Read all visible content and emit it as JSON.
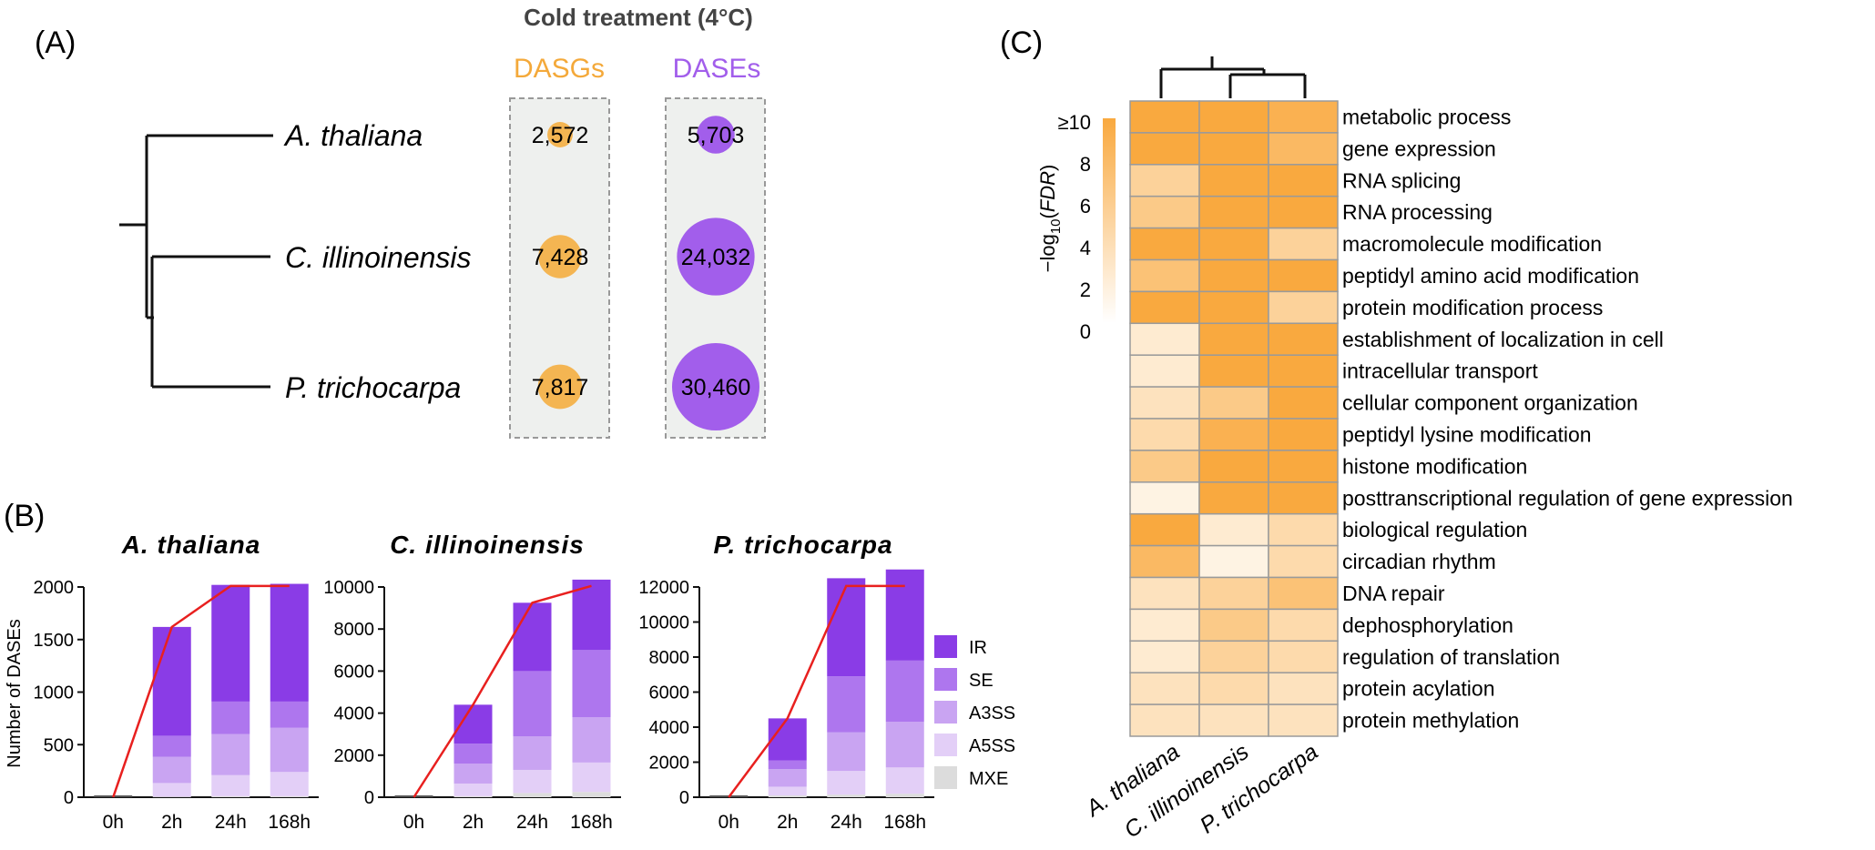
{
  "panel_a": {
    "label": "(A)",
    "header": "Cold treatment (4°C)",
    "col1_title": "DASGs",
    "col2_title": "DASEs",
    "species": [
      "A. thaliana",
      "C. illinoinensis",
      "P. trichocarpa"
    ],
    "dasgs": [
      2572,
      7428,
      7817
    ],
    "dasgs_text": [
      "2,572",
      "7,428",
      "7,817"
    ],
    "dases": [
      5703,
      24032,
      30460
    ],
    "dases_text": [
      "5,703",
      "24,032",
      "30,460"
    ],
    "colors": {
      "dasgs": "#F4B552",
      "dases": "#A25EEB",
      "box": "#EEF0EE"
    }
  },
  "panel_b": {
    "label": "(B)",
    "ylabel": "Number of DASEs",
    "legend": [
      "IR",
      "SE",
      "A3SS",
      "A5SS",
      "MXE"
    ]
  },
  "panel_c": {
    "label": "(C)",
    "scale_ticks": [
      "≥10",
      "8",
      "6",
      "4",
      "2",
      "0"
    ],
    "colors": {
      "high": "#F9A93F",
      "low": "#FFFBF5",
      "grid": "#9A9A9A"
    }
  },
  "chart_data": [
    {
      "type": "bar",
      "title": "A. thaliana",
      "ylabel": "Number of DASEs",
      "categories": [
        "0h",
        "2h",
        "24h",
        "168h"
      ],
      "ylim": [
        0,
        2000
      ],
      "yticks": [
        0,
        500,
        1000,
        1500,
        2000
      ],
      "series": [
        {
          "name": "MXE",
          "color": "#DCDCDC",
          "values": [
            0,
            5,
            10,
            10
          ]
        },
        {
          "name": "A5SS",
          "color": "#E3CFF7",
          "values": [
            0,
            130,
            200,
            230
          ]
        },
        {
          "name": "A3SS",
          "color": "#C9A4F2",
          "values": [
            0,
            250,
            390,
            420
          ]
        },
        {
          "name": "SE",
          "color": "#AE76EE",
          "values": [
            0,
            200,
            310,
            250
          ]
        },
        {
          "name": "IR",
          "color": "#8A3CE6",
          "values": [
            0,
            1035,
            1110,
            1120
          ]
        }
      ],
      "line": {
        "color": "#E8201F",
        "values": [
          0,
          1620,
          2020,
          2030
        ]
      }
    },
    {
      "type": "bar",
      "title": "C. illinoinensis",
      "categories": [
        "0h",
        "2h",
        "24h",
        "168h"
      ],
      "ylim": [
        0,
        10000
      ],
      "yticks": [
        0,
        2000,
        4000,
        6000,
        8000,
        10000
      ],
      "series": [
        {
          "name": "MXE",
          "color": "#DCDCDC",
          "values": [
            0,
            50,
            200,
            250
          ]
        },
        {
          "name": "A5SS",
          "color": "#E3CFF7",
          "values": [
            0,
            600,
            1100,
            1400
          ]
        },
        {
          "name": "A3SS",
          "color": "#C9A4F2",
          "values": [
            0,
            950,
            1600,
            2150
          ]
        },
        {
          "name": "SE",
          "color": "#AE76EE",
          "values": [
            0,
            950,
            3100,
            3200
          ]
        },
        {
          "name": "IR",
          "color": "#8A3CE6",
          "values": [
            0,
            1850,
            3250,
            3350
          ]
        }
      ],
      "line": {
        "color": "#E8201F",
        "values": [
          0,
          4400,
          9250,
          10350
        ]
      }
    },
    {
      "type": "bar",
      "title": "P. trichocarpa",
      "categories": [
        "0h",
        "2h",
        "24h",
        "168h"
      ],
      "ylim": [
        0,
        12000
      ],
      "yticks": [
        0,
        2000,
        4000,
        6000,
        8000,
        10000,
        12000
      ],
      "series": [
        {
          "name": "MXE",
          "color": "#DCDCDC",
          "values": [
            0,
            100,
            150,
            200
          ]
        },
        {
          "name": "A5SS",
          "color": "#E3CFF7",
          "values": [
            0,
            500,
            1350,
            1500
          ]
        },
        {
          "name": "A3SS",
          "color": "#C9A4F2",
          "values": [
            0,
            1000,
            2200,
            2600
          ]
        },
        {
          "name": "SE",
          "color": "#AE76EE",
          "values": [
            0,
            500,
            3200,
            3500
          ]
        },
        {
          "name": "IR",
          "color": "#8A3CE6",
          "values": [
            0,
            2400,
            5600,
            5200
          ]
        }
      ],
      "line": {
        "color": "#E8201F",
        "values": [
          0,
          4500,
          12500,
          13000
        ]
      }
    },
    {
      "type": "heatmap",
      "legend_title": "−log10(FDR)",
      "vmin": 0,
      "vmax": 10,
      "columns": [
        "A. thaliana",
        "C. illinoinensis",
        "P. trichocarpa"
      ],
      "rows": [
        "metabolic process",
        "gene expression",
        "RNA splicing",
        "RNA processing",
        "macromolecule modification",
        "peptidyl amino acid modification",
        "protein modification process",
        "establishment of localization in cell",
        "intracellular transport",
        "cellular component organization",
        "peptidyl lysine modification",
        "histone modification",
        "posttranscriptional regulation of gene expression",
        "biological regulation",
        "circadian rhythm",
        "DNA repair",
        "dephosphorylation",
        "regulation of translation",
        "protein acylation",
        "protein methylation"
      ],
      "values": [
        [
          10,
          10,
          9
        ],
        [
          10,
          10,
          8
        ],
        [
          5,
          10,
          10
        ],
        [
          6,
          10,
          10
        ],
        [
          10,
          10,
          5
        ],
        [
          7,
          10,
          10
        ],
        [
          10,
          10,
          5
        ],
        [
          2,
          10,
          10
        ],
        [
          2,
          10,
          10
        ],
        [
          3,
          6,
          10
        ],
        [
          4,
          9,
          10
        ],
        [
          6,
          10,
          10
        ],
        [
          1,
          10,
          10
        ],
        [
          10,
          2,
          4
        ],
        [
          8,
          1,
          4
        ],
        [
          3,
          5,
          7
        ],
        [
          2,
          6,
          4
        ],
        [
          2,
          5,
          4
        ],
        [
          3,
          4,
          3
        ],
        [
          3,
          3,
          3
        ]
      ]
    }
  ]
}
